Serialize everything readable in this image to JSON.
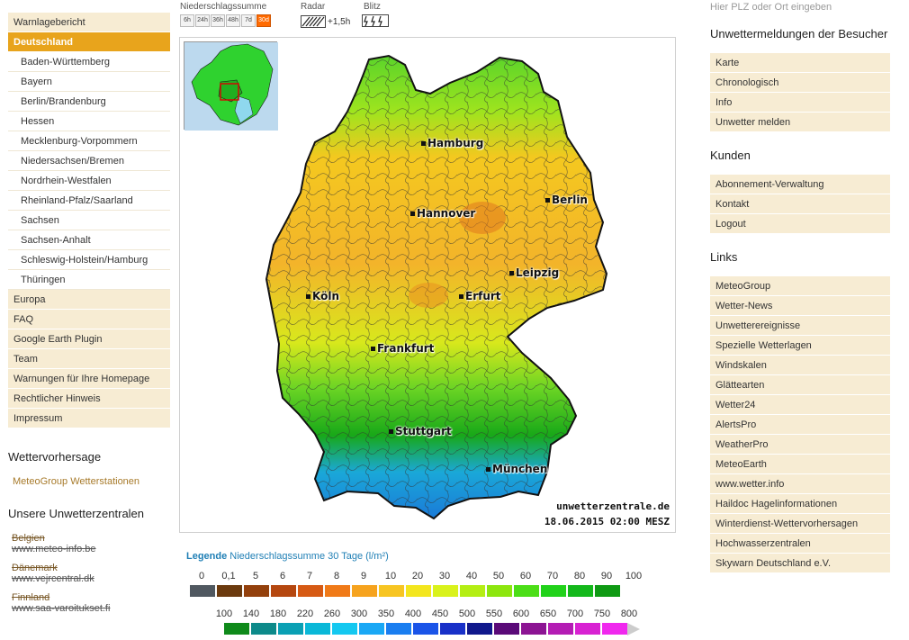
{
  "left_menu": {
    "top": "Warnlagebericht",
    "active": "Deutschland",
    "regions": [
      "Baden-Württemberg",
      "Bayern",
      "Berlin/Brandenburg",
      "Hessen",
      "Mecklenburg-Vorpommern",
      "Niedersachsen/Bremen",
      "Nordrhein-Westfalen",
      "Rheinland-Pfalz/Saarland",
      "Sachsen",
      "Sachsen-Anhalt",
      "Schleswig-Holstein/Hamburg",
      "Thüringen"
    ],
    "more": [
      "Europa",
      "FAQ",
      "Google Earth Plugin",
      "Team",
      "Warnungen für Ihre Homepage",
      "Rechtlicher Hinweis",
      "Impressum"
    ]
  },
  "forecast": {
    "title": "Wettervorhersage",
    "link": "MeteoGroup Wetterstationen"
  },
  "centers": {
    "title": "Unsere Unwetterzentralen",
    "items": [
      {
        "country": "Belgien",
        "url": "www.meteo-info.be"
      },
      {
        "country": "Dänemark",
        "url": "www.vejrcentral.dk"
      },
      {
        "country": "Finnland",
        "url": "www.saa-varoitukset.fi"
      }
    ]
  },
  "controls": {
    "precip_label": "Niederschlagssumme",
    "radar_label": "Radar",
    "blitz_label": "Blitz",
    "periods": [
      "6h",
      "24h",
      "36h",
      "48h",
      "7d",
      "30d"
    ],
    "active_period": "30d",
    "radar_value": "+1,5h",
    "blitz_icon": "lightning-icon"
  },
  "map": {
    "cities": [
      "Hamburg",
      "Berlin",
      "Hannover",
      "Leipzig",
      "Köln",
      "Erfurt",
      "Frankfurt",
      "Stuttgart",
      "München"
    ],
    "credit": "unwetterzentrale.de",
    "timestamp": "18.06.2015 02:00 MESZ"
  },
  "legend": {
    "title": "Legende",
    "subtitle": "Niederschlagssumme 30 Tage",
    "unit": "(l/m²)",
    "row1_labels": [
      "0",
      "0,1",
      "5",
      "6",
      "7",
      "8",
      "9",
      "10",
      "20",
      "30",
      "40",
      "50",
      "60",
      "70",
      "80",
      "90",
      "100"
    ],
    "row1_colors": [
      "#505860",
      "#6b3a0e",
      "#93400c",
      "#b5470f",
      "#d65a14",
      "#f07a18",
      "#f6a31e",
      "#f7c522",
      "#f3e61e",
      "#d9f21c",
      "#b4ee14",
      "#8de60e",
      "#4cde17",
      "#21d21a",
      "#14b81b",
      "#0f9a14"
    ],
    "row2_labels": [
      "100",
      "140",
      "180",
      "220",
      "260",
      "300",
      "350",
      "400",
      "450",
      "500",
      "550",
      "600",
      "650",
      "700",
      "750",
      "800"
    ],
    "row2_colors": [
      "#0f8a1a",
      "#0d8a8a",
      "#0aa0b4",
      "#0ab8d8",
      "#14c8f0",
      "#1aa8f5",
      "#1a7ef0",
      "#1a54e8",
      "#1830c8",
      "#10188c",
      "#5a0a78",
      "#8c1493",
      "#b41cb4",
      "#d822d2",
      "#f028ee"
    ],
    "row2_last_color": "#cccccc"
  },
  "right": {
    "search_placeholder": "Hier PLZ oder Ort eingeben",
    "visitors_title": "Unwettermeldungen der Besucher",
    "visitors": [
      "Karte",
      "Chronologisch",
      "Info",
      "Unwetter melden"
    ],
    "customers_title": "Kunden",
    "customers": [
      "Abonnement-Verwaltung",
      "Kontakt",
      "Logout"
    ],
    "links_title": "Links",
    "links": [
      "MeteoGroup",
      "Wetter-News",
      "Unwetterereignisse",
      "Spezielle Wetterlagen",
      "Windskalen",
      "Glättearten",
      "Wetter24",
      "AlertsPro",
      "WeatherPro",
      "MeteoEarth",
      "www.wetter.info",
      "Haildoc Hagelinformationen",
      "Winterdienst-Wettervorhersagen",
      "Hochwasserzentralen",
      "Skywarn Deutschland e.V."
    ]
  }
}
